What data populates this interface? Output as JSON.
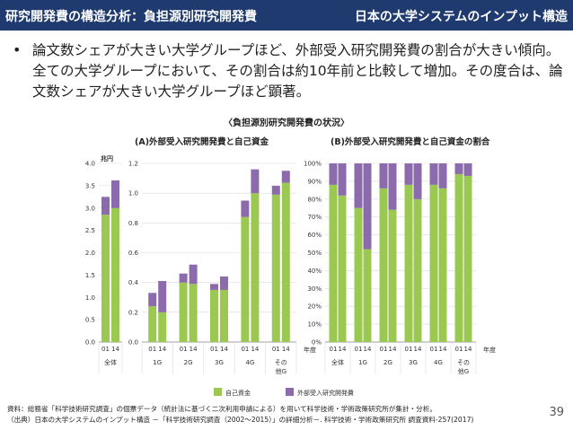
{
  "header": {
    "left_title": "研究開発費の構造分析：負担源別研究開発費",
    "right_title": "日本の大学システムのインプット構造"
  },
  "bullet": {
    "marker": "•",
    "text": "論文数シェアが大きい大学グループほど、外部受入研究開発費の割合が大きい傾向。全ての大学グループにおいて、その割合は約10年前と比較して増加。その度合は、論文数シェアが大きい大学グループほど顕著。"
  },
  "section_title": "〈負担源別研究開発費の状況〉",
  "footnotes": {
    "line1": "資料：総務省「科学技術研究調査」の個票データ（統計法に基づく二次利用申請による）を用いて科学技術・学術政策研究所が集計・分析。",
    "line2": "（出典）日本の大学システムのインプット構造 －「科学技術研究調査（2002～2015）」の詳細分析－. 科学技術・学術政策研究所 調査資料-257(2017)"
  },
  "page_number": "39",
  "legend": {
    "self": "自己資金",
    "external": "外部受入研究開発費"
  },
  "colors": {
    "self": "#9bc850",
    "external": "#8b6bab",
    "header_bg": "#1f3a6e",
    "grid": "#d9d9d9",
    "axis": "#888888"
  },
  "chart_data": [
    {
      "type": "bar",
      "stacked": true,
      "title": "(A)外部受入研究開発費と自己資金",
      "unit": "兆円",
      "groups": [
        "全体"
      ],
      "categories": [
        "01",
        "14"
      ],
      "series": [
        {
          "name": "自己資金",
          "values": [
            2.85,
            3.0
          ]
        },
        {
          "name": "外部受入研究開発費",
          "values": [
            0.4,
            0.62
          ]
        }
      ],
      "ylim": [
        0,
        4.0
      ],
      "yticks": [
        "0.0",
        "0.5",
        "1.0",
        "1.5",
        "2.0",
        "2.5",
        "3.0",
        "3.5",
        "4.0"
      ]
    },
    {
      "type": "bar",
      "stacked": true,
      "title": "(A)外部受入研究開発費と自己資金",
      "groups": [
        "1G",
        "2G",
        "3G",
        "4G",
        "その他G"
      ],
      "categories": [
        "01",
        "14",
        "01",
        "14",
        "01",
        "14",
        "01",
        "14",
        "01",
        "14"
      ],
      "series": [
        {
          "name": "自己資金",
          "values": [
            0.24,
            0.2,
            0.4,
            0.39,
            0.35,
            0.35,
            0.84,
            1.0,
            0.99,
            1.07
          ]
        },
        {
          "name": "外部受入研究開発費",
          "values": [
            0.09,
            0.21,
            0.06,
            0.13,
            0.04,
            0.09,
            0.11,
            0.16,
            0.06,
            0.08
          ]
        }
      ],
      "ylim": [
        0,
        1.2
      ],
      "yticks": [
        "0.0",
        "0.2",
        "0.4",
        "0.6",
        "0.8",
        "1.0",
        "1.2"
      ],
      "xlabel": "年度"
    },
    {
      "type": "bar",
      "stacked": true,
      "percent": true,
      "title": "(B)外部受入研究開発費と自己資金の割合",
      "groups": [
        "全体",
        "1G",
        "2G",
        "3G",
        "4G",
        "その他G"
      ],
      "categories": [
        "01",
        "14",
        "01",
        "14",
        "01",
        "14",
        "01",
        "14",
        "01",
        "14",
        "01",
        "14"
      ],
      "series": [
        {
          "name": "自己資金",
          "values": [
            88,
            82,
            75,
            52,
            86,
            74,
            88,
            80,
            88,
            86,
            94,
            93
          ]
        },
        {
          "name": "外部受入研究開発費",
          "values": [
            12,
            18,
            25,
            48,
            14,
            26,
            12,
            20,
            12,
            14,
            6,
            7
          ]
        }
      ],
      "ylim": [
        0,
        100
      ],
      "yticks": [
        "0%",
        "10%",
        "20%",
        "30%",
        "40%",
        "50%",
        "60%",
        "70%",
        "80%",
        "90%",
        "100%"
      ],
      "xlabel": "年度"
    }
  ]
}
